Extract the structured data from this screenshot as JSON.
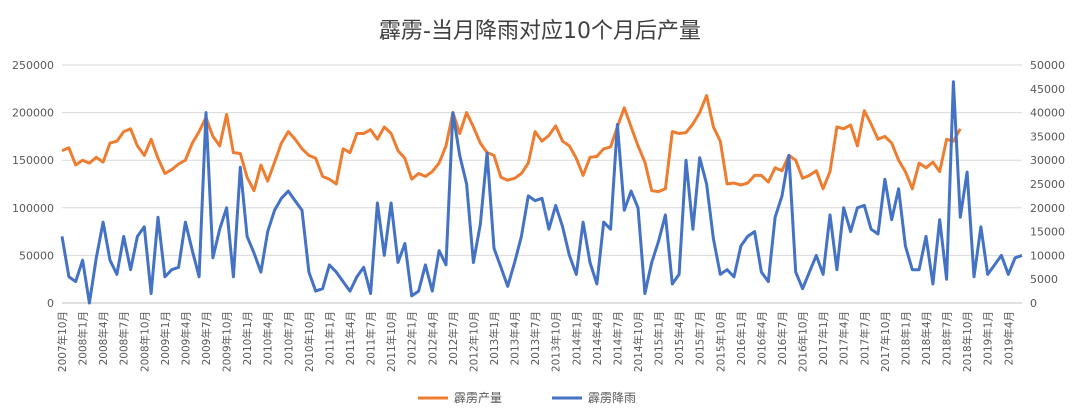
{
  "chart_data": {
    "type": "line",
    "title": "霹雳-当月降雨对应10个月后产量",
    "left_axis": {
      "min": 0,
      "max": 250000,
      "ticks": [
        "0",
        "50000",
        "100000",
        "150000",
        "200000",
        "250000"
      ]
    },
    "right_axis": {
      "min": 0,
      "max": 50000,
      "ticks": [
        "0",
        "5000",
        "10000",
        "15000",
        "20000",
        "25000",
        "30000",
        "35000",
        "40000",
        "45000",
        "50000"
      ]
    },
    "x_tick_labels": [
      "2007年10月",
      "2008年1月",
      "2008年4月",
      "2008年7月",
      "2008年10月",
      "2009年1月",
      "2009年4月",
      "2009年7月",
      "2009年10月",
      "2010年1月",
      "2010年4月",
      "2010年7月",
      "2010年10月",
      "2011年1月",
      "2011年4月",
      "2011年7月",
      "2011年10月",
      "2012年1月",
      "2012年4月",
      "2012年7月",
      "2012年10月",
      "2013年1月",
      "2013年4月",
      "2013年7月",
      "2013年10月",
      "2014年1月",
      "2014年4月",
      "2014年7月",
      "2014年10月",
      "2015年1月",
      "2015年4月",
      "2015年7月",
      "2015年10月",
      "2016年1月",
      "2016年4月",
      "2016年7月",
      "2016年10月",
      "2017年1月",
      "2017年4月",
      "2017年7月",
      "2017年10月",
      "2018年1月",
      "2018年4月",
      "2018年7月",
      "2018年10月",
      "2019年1月",
      "2019年4月"
    ],
    "grid": "horizontal",
    "legend_position": "bottom",
    "series": [
      {
        "name": "霹雳产量",
        "axis": "left",
        "color": "#ed7d31",
        "values": [
          160000,
          163000,
          145000,
          150000,
          147000,
          153000,
          148000,
          168000,
          170000,
          180000,
          183000,
          165000,
          155000,
          172000,
          152000,
          136000,
          140000,
          146000,
          150000,
          168000,
          180000,
          195000,
          175000,
          165000,
          198000,
          158000,
          157000,
          132000,
          118000,
          145000,
          128000,
          148000,
          168000,
          180000,
          172000,
          162000,
          155000,
          152000,
          133000,
          130000,
          125000,
          162000,
          158000,
          178000,
          178000,
          182000,
          172000,
          185000,
          178000,
          160000,
          152000,
          130000,
          136000,
          133000,
          138000,
          147000,
          165000,
          200000,
          178000,
          200000,
          185000,
          168000,
          158000,
          155000,
          132000,
          129000,
          131000,
          136000,
          147000,
          180000,
          170000,
          176000,
          186000,
          170000,
          165000,
          152000,
          134000,
          153000,
          154000,
          162000,
          164000,
          185000,
          205000,
          185000,
          165000,
          148000,
          118000,
          117000,
          120000,
          180000,
          178000,
          179000,
          188000,
          200000,
          218000,
          185000,
          170000,
          125000,
          126000,
          124000,
          126000,
          134000,
          134000,
          127000,
          142000,
          139000,
          155000,
          150000,
          131000,
          134000,
          139000,
          120000,
          138000,
          185000,
          183000,
          187000,
          165000,
          202000,
          188000,
          172000,
          175000,
          168000,
          150000,
          138000,
          120000,
          147000,
          142000,
          148000,
          138000,
          172000,
          170000,
          183000
        ]
      },
      {
        "name": "霹雳降雨",
        "axis": "right",
        "color": "#4472c4",
        "values": [
          14000,
          5500,
          4500,
          9000,
          0,
          9500,
          17000,
          9000,
          6000,
          14000,
          7000,
          14000,
          16000,
          2000,
          18000,
          5500,
          7000,
          7500,
          17000,
          11000,
          5500,
          40000,
          9500,
          15500,
          20000,
          5500,
          28500,
          14000,
          10500,
          6500,
          15000,
          19500,
          22000,
          23500,
          21500,
          19500,
          6500,
          2500,
          3000,
          8000,
          6500,
          4500,
          2500,
          5500,
          7500,
          2000,
          21000,
          10000,
          21000,
          8500,
          12500,
          1500,
          2500,
          8000,
          2500,
          11000,
          8000,
          40000,
          31000,
          25000,
          8500,
          16500,
          31500,
          11500,
          7500,
          3500,
          8500,
          14000,
          22500,
          21500,
          22000,
          15500,
          20500,
          16000,
          10000,
          6000,
          17000,
          8500,
          4000,
          17000,
          15500,
          37500,
          19500,
          23500,
          20000,
          2000,
          8500,
          13000,
          18500,
          4000,
          6000,
          30000,
          15500,
          30500,
          25000,
          13500,
          6000,
          7000,
          5500,
          12000,
          14000,
          15000,
          6500,
          4500,
          18000,
          22500,
          31000,
          6500,
          3000,
          6500,
          10000,
          6000,
          18500,
          7000,
          20000,
          15000,
          20000,
          20500,
          15500,
          14500,
          26000,
          17500,
          24000,
          12000,
          7000,
          7000,
          14000,
          4000,
          17500,
          5000,
          46500,
          18000,
          27500,
          5500,
          16000,
          6000,
          8000,
          10000,
          6000,
          9500,
          10000
        ]
      }
    ]
  }
}
